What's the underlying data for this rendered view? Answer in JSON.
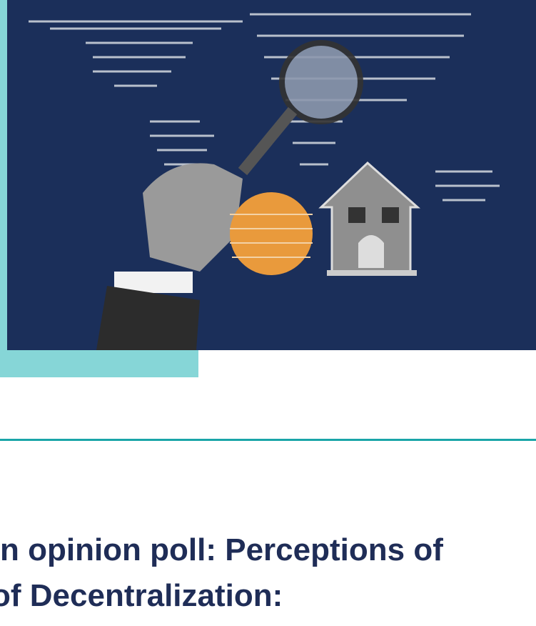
{
  "headline": {
    "lines": [
      "n opinion poll: Perceptions of",
      "of Decentralization:"
    ]
  }
}
